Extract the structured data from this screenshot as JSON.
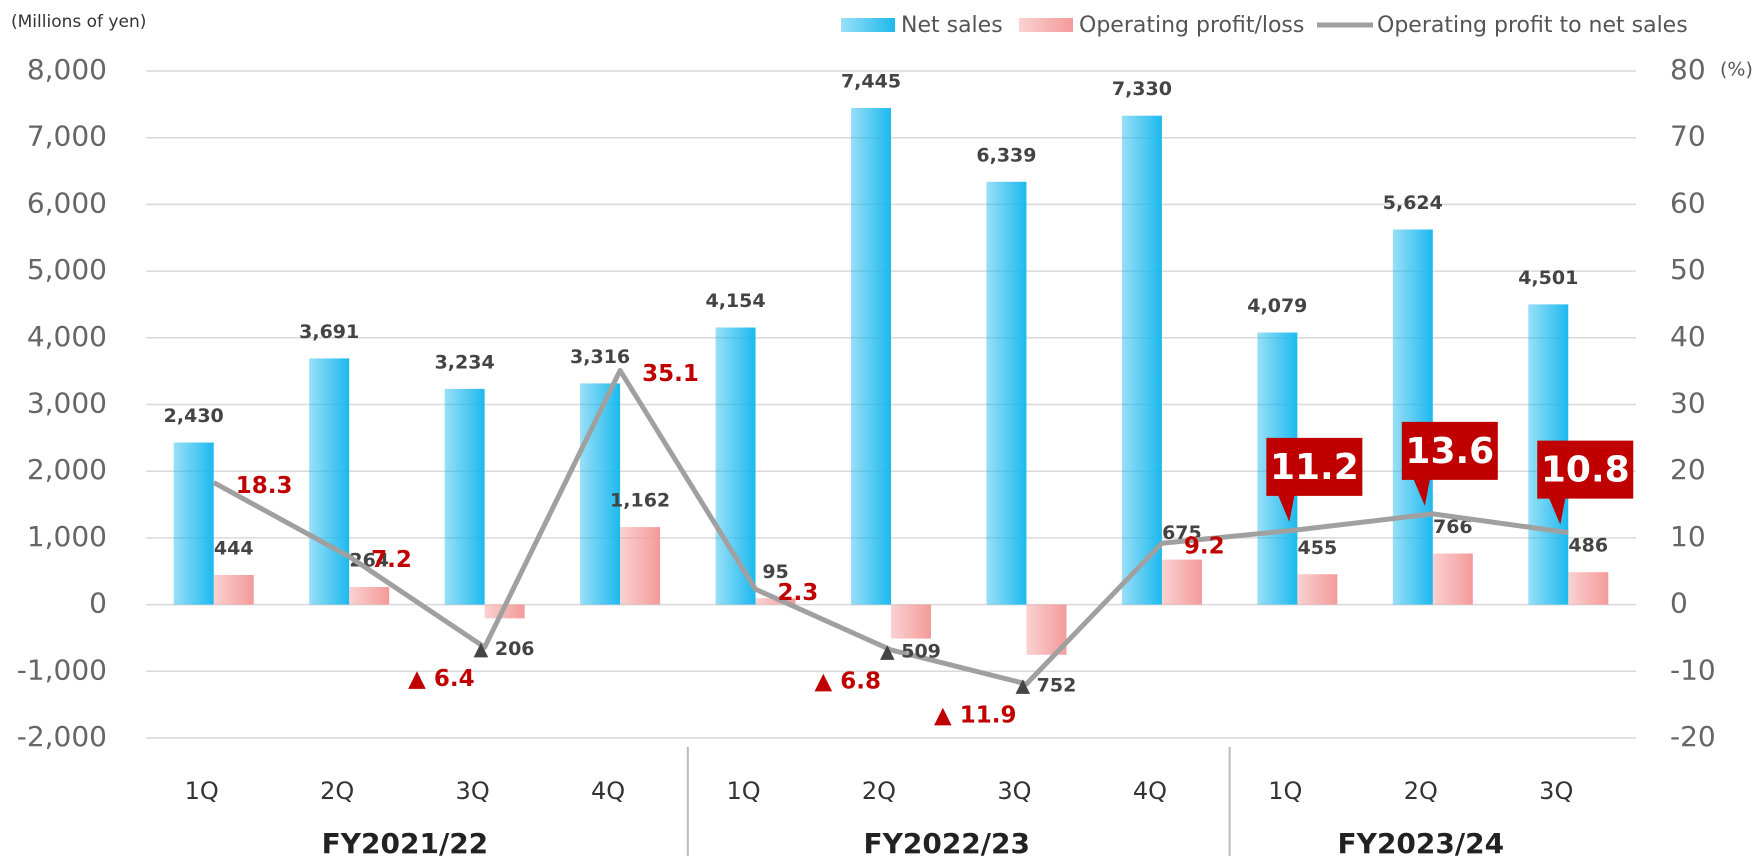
{
  "chart_data": {
    "type": "bar",
    "y_axis_label": "(Millions of yen)",
    "y2_axis_label": "(%)",
    "groups": [
      {
        "label": "FY2021/22",
        "categories": [
          "1Q",
          "2Q",
          "3Q",
          "4Q"
        ]
      },
      {
        "label": "FY2022/23",
        "categories": [
          "1Q",
          "2Q",
          "3Q",
          "4Q"
        ]
      },
      {
        "label": "FY2023/24",
        "categories": [
          "1Q",
          "2Q",
          "3Q"
        ]
      }
    ],
    "series": [
      {
        "name": "Net sales",
        "color": "#1cb9ee",
        "type": "bar",
        "values": [
          2430,
          3691,
          3234,
          3316,
          4154,
          7445,
          6339,
          7330,
          4079,
          5624,
          4501
        ],
        "value_labels": [
          "2,430",
          "3,691",
          "3,234",
          "3,316",
          "4,154",
          "7,445",
          "6,339",
          "7,330",
          "4,079",
          "5,624",
          "4,501"
        ]
      },
      {
        "name": "Operating profit/loss",
        "color": "#f49a9a",
        "type": "bar",
        "values": [
          444,
          264,
          -206,
          1162,
          95,
          -509,
          -752,
          675,
          455,
          766,
          486
        ],
        "value_labels": [
          "444",
          "264",
          "▲ 206",
          "1,162",
          "95",
          "▲ 509",
          "▲ 752",
          "675",
          "455",
          "766",
          "486"
        ]
      },
      {
        "name": "Operating profit to net sales",
        "color": "#a0a0a0",
        "type": "line",
        "axis": "y2",
        "values": [
          18.3,
          7.2,
          -6.4,
          35.1,
          2.3,
          -6.8,
          -11.9,
          9.2,
          11.2,
          13.6,
          10.8
        ],
        "value_labels": [
          "18.3",
          "7.2",
          "▲ 6.4",
          "35.1",
          "2.3",
          "▲ 6.8",
          "▲ 11.9",
          "9.2",
          "11.2",
          "13.6",
          "10.8"
        ]
      }
    ],
    "ylim": [
      -2000,
      8000
    ],
    "yticks": [
      {
        "value": -2000,
        "label": "-2,000"
      },
      {
        "value": -1000,
        "label": "-1,000"
      },
      0,
      {
        "value": 1000,
        "label": "1,000"
      },
      {
        "value": 2000,
        "label": "2,000"
      },
      {
        "value": 3000,
        "label": "3,000"
      },
      {
        "value": 4000,
        "label": "4,000"
      },
      {
        "value": 5000,
        "label": "5,000"
      },
      {
        "value": 6000,
        "label": "6,000"
      },
      {
        "value": 7000,
        "label": "7,000"
      },
      {
        "value": 8000,
        "label": "8,000"
      }
    ],
    "y2lim": [
      -20,
      80
    ],
    "y2ticks": [
      -20,
      -10,
      0,
      10,
      20,
      30,
      40,
      50,
      60,
      70,
      80
    ],
    "grid": true,
    "legend": "top-right"
  }
}
